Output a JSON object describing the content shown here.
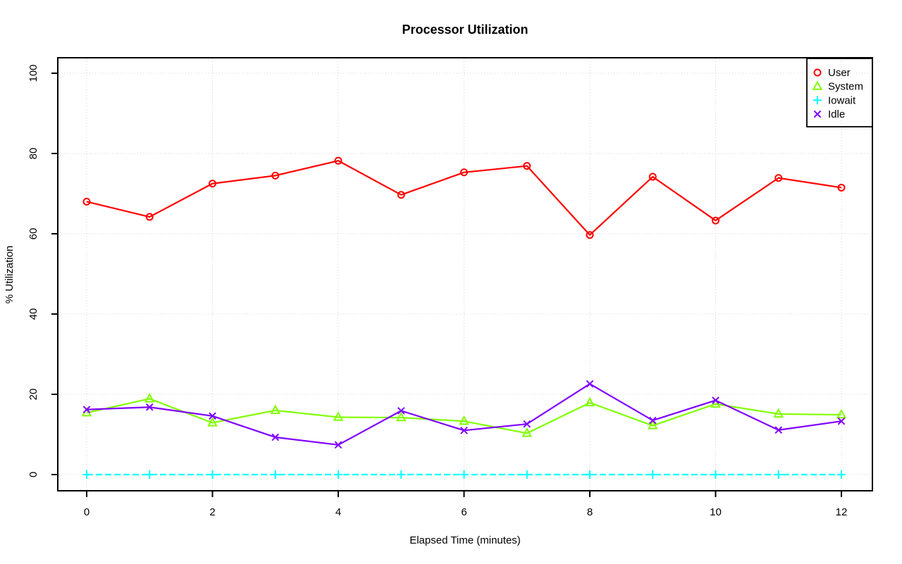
{
  "figure": {
    "title": "Processor Utilization",
    "xlabel": "Elapsed Time (minutes)",
    "ylabel": "% Utilization"
  },
  "chart_data": {
    "type": "line",
    "title": "Processor Utilization",
    "xlabel": "Elapsed Time (minutes)",
    "ylabel": "% Utilization",
    "x": [
      0,
      1,
      2,
      3,
      4,
      5,
      6,
      7,
      8,
      9,
      10,
      11,
      12
    ],
    "x_ticks": [
      0,
      2,
      4,
      6,
      8,
      10,
      12
    ],
    "y_ticks": [
      0,
      20,
      40,
      60,
      80,
      100
    ],
    "xlim": [
      0,
      12
    ],
    "ylim": [
      0,
      100
    ],
    "grid": "dotted",
    "grid_color": "#d3d3d3",
    "frame_color": "#000000",
    "legend_position": "top-right",
    "series": [
      {
        "name": "User",
        "color": "#ff0000",
        "marker": "circle",
        "line_style": "solid",
        "values": [
          68.0,
          64.2,
          72.5,
          74.5,
          78.2,
          69.7,
          75.3,
          76.9,
          59.7,
          74.2,
          63.3,
          73.9,
          71.5
        ]
      },
      {
        "name": "System",
        "color": "#80ff00",
        "marker": "triangle",
        "line_style": "solid",
        "values": [
          15.4,
          18.9,
          12.9,
          16.0,
          14.3,
          14.2,
          13.3,
          10.3,
          17.9,
          12.2,
          17.6,
          15.1,
          14.9
        ]
      },
      {
        "name": "Iowait",
        "color": "#00ffff",
        "marker": "plus",
        "line_style": "dashed",
        "values": [
          0,
          0,
          0,
          0,
          0,
          0,
          0,
          0,
          0,
          0,
          0,
          0,
          0
        ]
      },
      {
        "name": "Idle",
        "color": "#8000ff",
        "marker": "x",
        "line_style": "solid",
        "values": [
          16.2,
          16.8,
          14.6,
          9.3,
          7.4,
          15.9,
          11.0,
          12.6,
          22.6,
          13.5,
          18.5,
          11.1,
          13.3
        ]
      }
    ]
  }
}
